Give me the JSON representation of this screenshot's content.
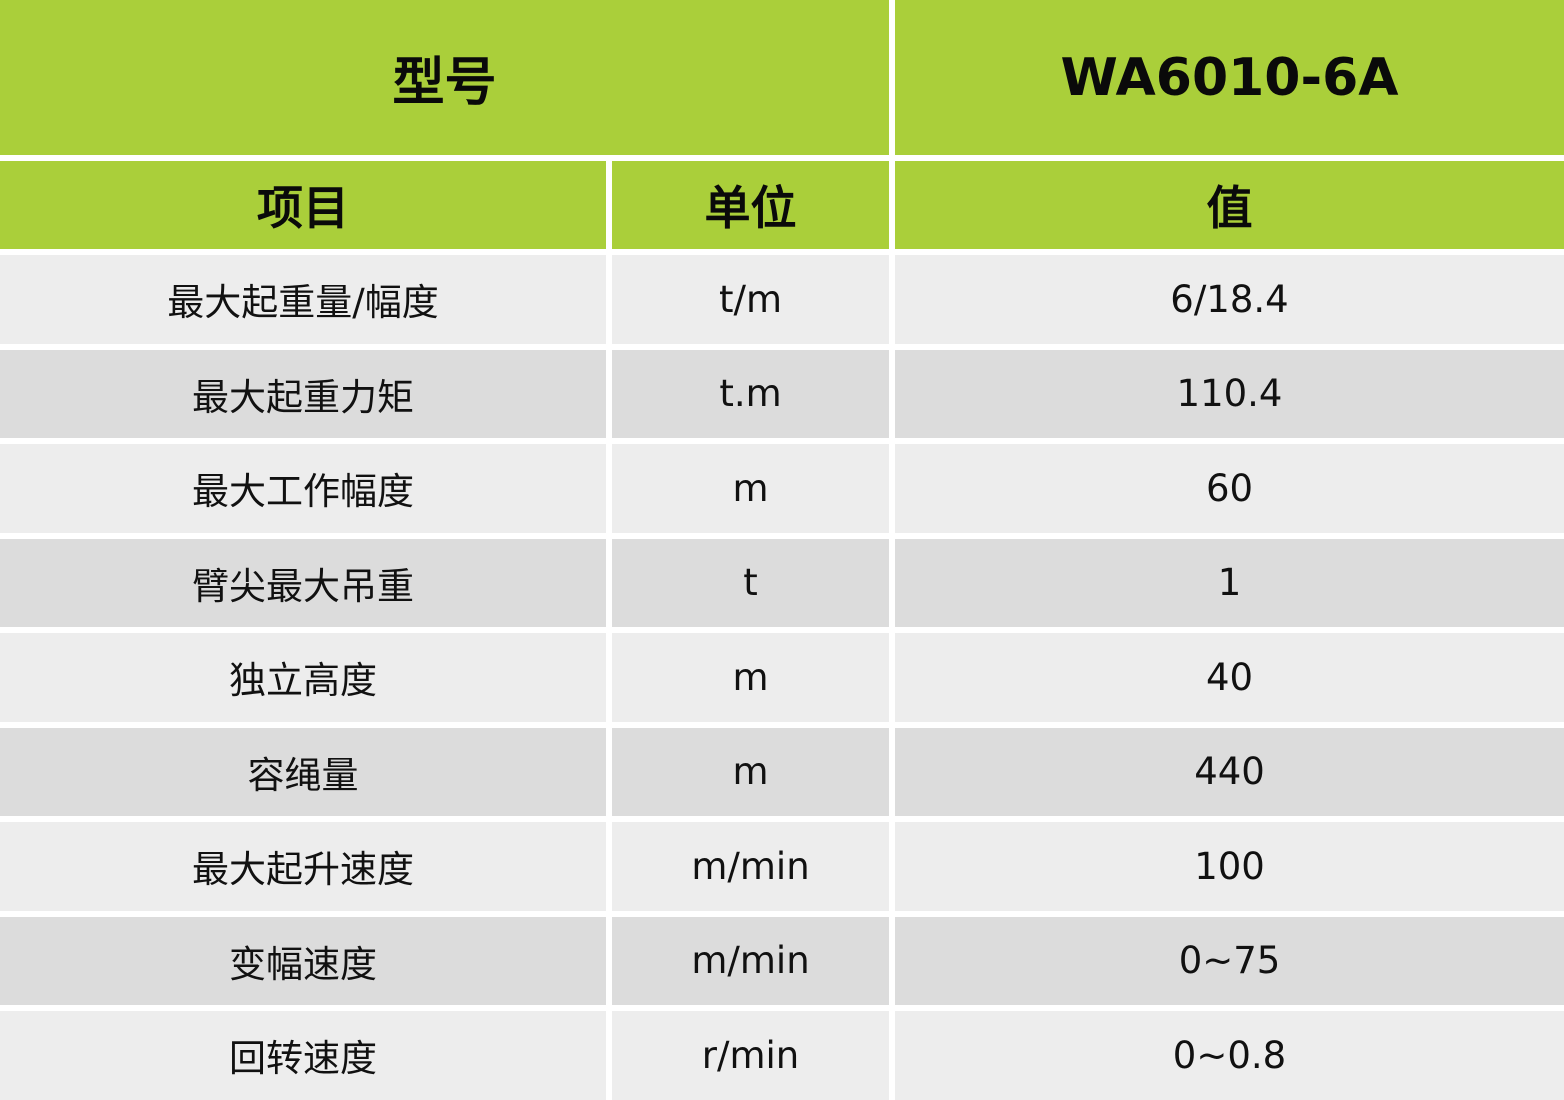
{
  "header": {
    "model_label": "型号",
    "model_value": "WA6010-6A"
  },
  "columns": {
    "item": "项目",
    "unit": "单位",
    "value": "值"
  },
  "colors": {
    "header_green": "#aacf3a",
    "row_light": "#ededed",
    "row_dark": "#dcdcdc"
  },
  "rows": [
    {
      "item": "最大起重量/幅度",
      "unit": "t/m",
      "value": "6/18.4"
    },
    {
      "item": "最大起重力矩",
      "unit": "t.m",
      "value": "110.4"
    },
    {
      "item": "最大工作幅度",
      "unit": "m",
      "value": "60"
    },
    {
      "item": "臂尖最大吊重",
      "unit": "t",
      "value": "1"
    },
    {
      "item": "独立高度",
      "unit": "m",
      "value": "40"
    },
    {
      "item": "容绳量",
      "unit": "m",
      "value": "440"
    },
    {
      "item": "最大起升速度",
      "unit": "m/min",
      "value": "100"
    },
    {
      "item": "变幅速度",
      "unit": "m/min",
      "value": "0~75"
    },
    {
      "item": "回转速度",
      "unit": "r/min",
      "value": "0~0.8"
    }
  ]
}
